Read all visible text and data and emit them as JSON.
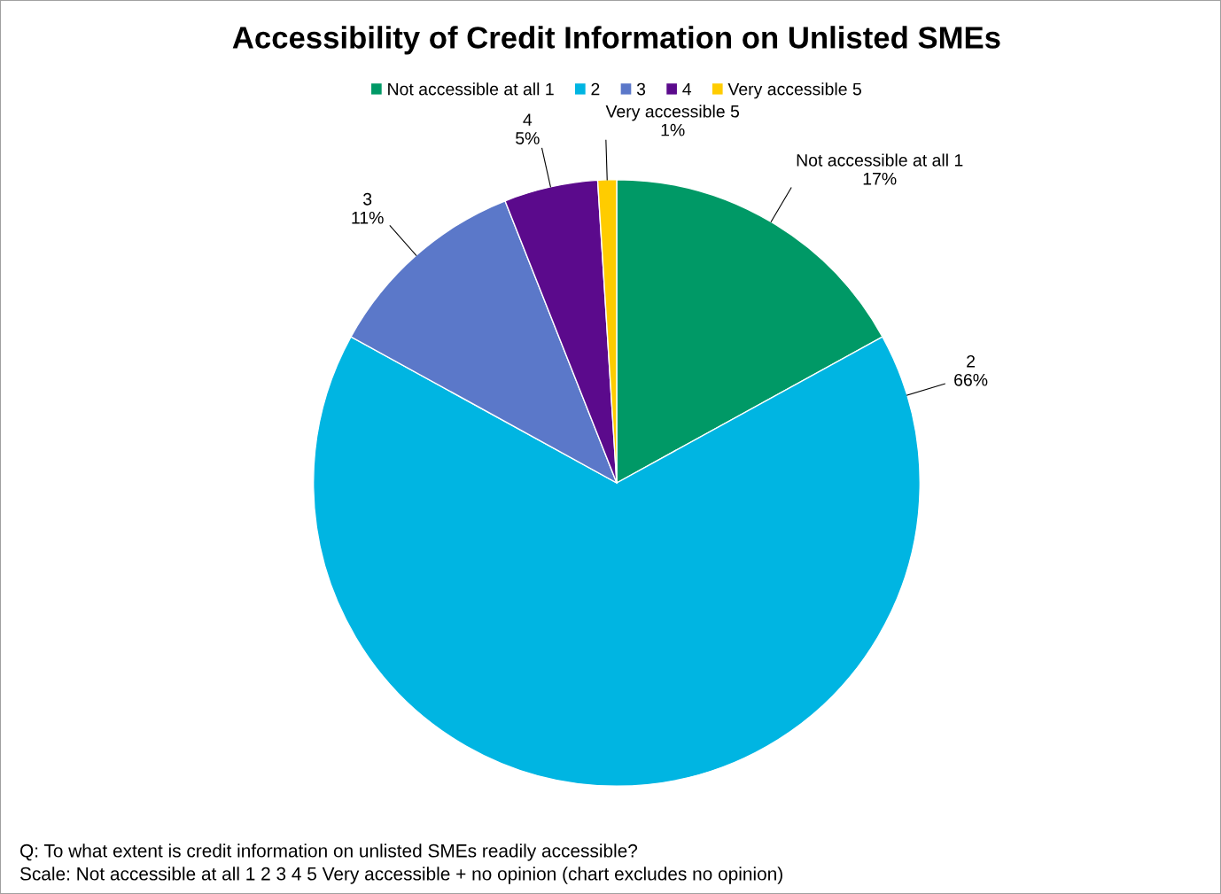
{
  "chart_data": {
    "type": "pie",
    "title": "Accessibility of Credit Information on Unlisted SMEs",
    "categories": [
      "Not accessible at all 1",
      "2",
      "3",
      "4",
      "Very accessible 5"
    ],
    "values": [
      17,
      66,
      11,
      5,
      1
    ],
    "colors": [
      "#009966",
      "#00b5e2",
      "#5b78c9",
      "#5b0a8c",
      "#ffcc00"
    ],
    "value_labels": [
      "17%",
      "66%",
      "11%",
      "5%",
      "1%"
    ],
    "legend": "top",
    "annotations": [
      "Q: To what extent is credit information on unlisted SMEs readily accessible?",
      "Scale: Not accessible at all 1 2 3 4 5 Very accessible + no opinion (chart excludes no opinion)"
    ]
  }
}
